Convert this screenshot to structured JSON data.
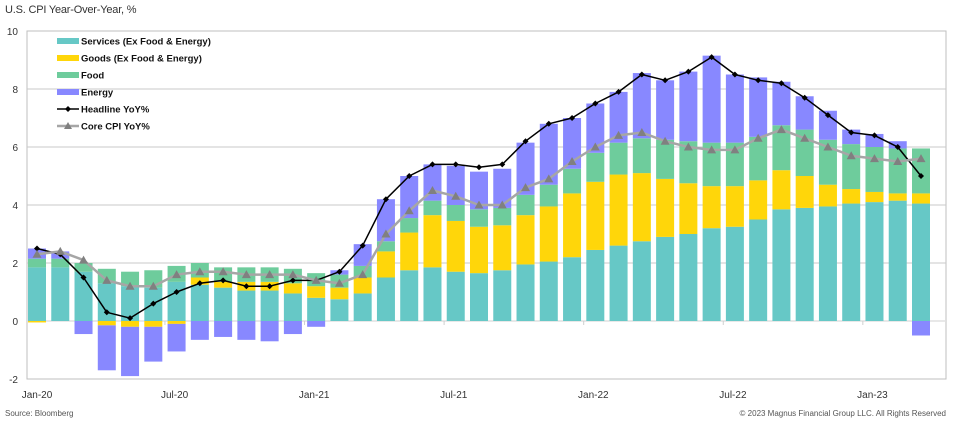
{
  "header": {
    "title": "U.S. CPI Year-Over-Year, %"
  },
  "footer": {
    "source": "Source: Bloomberg",
    "copyright": "© 2023 Magnus Financial Group LLC. All Rights Reserved"
  },
  "colors": {
    "services": "#66c8c6",
    "goods": "#ffd60a",
    "food": "#6ecc9c",
    "energy": "#8888ff",
    "headline": "#000000",
    "core": "#a6a6a6",
    "core_marker": "#808080",
    "grid": "#c8c8c8"
  },
  "chart_data": {
    "type": "bar",
    "stacked": true,
    "title": "U.S. CPI Year-Over-Year, %",
    "xlabel": "",
    "ylabel": "",
    "ylim": [
      -2,
      10
    ],
    "yticks": [
      "10",
      "8",
      "6",
      "4",
      "2",
      "0",
      "-2"
    ],
    "ytick_values": [
      10,
      8,
      6,
      4,
      2,
      0,
      -2
    ],
    "grid": true,
    "legend_position": "top-left",
    "categories": [
      "Jan-20",
      "Feb-20",
      "Mar-20",
      "Apr-20",
      "May-20",
      "Jun-20",
      "Jul-20",
      "Aug-20",
      "Sep-20",
      "Oct-20",
      "Nov-20",
      "Dec-20",
      "Jan-21",
      "Feb-21",
      "Mar-21",
      "Apr-21",
      "May-21",
      "Jun-21",
      "Jul-21",
      "Aug-21",
      "Sep-21",
      "Oct-21",
      "Nov-21",
      "Dec-21",
      "Jan-22",
      "Feb-22",
      "Mar-22",
      "Apr-22",
      "May-22",
      "Jun-22",
      "Jul-22",
      "Aug-22",
      "Sep-22",
      "Oct-22",
      "Nov-22",
      "Dec-22",
      "Jan-23",
      "Feb-23",
      "Mar-23"
    ],
    "xticks": [
      {
        "label": "Jan-20",
        "index": 0
      },
      {
        "label": "Jul-20",
        "index": 6
      },
      {
        "label": "Jan-21",
        "index": 12
      },
      {
        "label": "Jul-21",
        "index": 18
      },
      {
        "label": "Jan-22",
        "index": 24
      },
      {
        "label": "Jul-22",
        "index": 30
      },
      {
        "label": "Jan-23",
        "index": 36
      }
    ],
    "series": [
      {
        "name": "Services (Ex Food & Energy)",
        "kind": "bar",
        "color_key": "services",
        "values": [
          1.85,
          1.85,
          1.7,
          1.3,
          1.2,
          1.15,
          1.35,
          1.25,
          1.15,
          1.05,
          1.05,
          0.95,
          0.8,
          0.75,
          0.95,
          1.5,
          1.75,
          1.85,
          1.7,
          1.65,
          1.75,
          1.95,
          2.05,
          2.2,
          2.45,
          2.6,
          2.75,
          2.9,
          3.0,
          3.2,
          3.25,
          3.5,
          3.85,
          3.9,
          3.95,
          4.05,
          4.1,
          4.15,
          4.05
        ]
      },
      {
        "name": "Goods (Ex Food & Energy)",
        "kind": "bar",
        "color_key": "goods",
        "values": [
          -0.05,
          0.0,
          0.0,
          -0.15,
          -0.2,
          -0.2,
          -0.1,
          0.25,
          0.2,
          0.3,
          0.3,
          0.35,
          0.4,
          0.4,
          0.55,
          0.9,
          1.3,
          1.8,
          1.75,
          1.6,
          1.55,
          1.7,
          1.9,
          2.2,
          2.35,
          2.45,
          2.35,
          2.0,
          1.75,
          1.45,
          1.4,
          1.35,
          1.35,
          1.1,
          0.75,
          0.5,
          0.35,
          0.25,
          0.35
        ]
      },
      {
        "name": "Food",
        "kind": "bar",
        "color_key": "food",
        "values": [
          0.3,
          0.3,
          0.3,
          0.5,
          0.5,
          0.6,
          0.55,
          0.5,
          0.5,
          0.5,
          0.5,
          0.5,
          0.45,
          0.45,
          0.4,
          0.35,
          0.5,
          0.5,
          0.55,
          0.6,
          0.6,
          0.7,
          0.75,
          0.85,
          1.0,
          1.1,
          1.2,
          1.35,
          1.45,
          1.5,
          1.5,
          1.5,
          1.55,
          1.6,
          1.55,
          1.55,
          1.55,
          1.55,
          1.55
        ]
      },
      {
        "name": "Energy",
        "kind": "bar",
        "color_key": "energy",
        "values": [
          0.35,
          0.25,
          -0.45,
          -1.55,
          -1.7,
          -1.2,
          -0.95,
          -0.65,
          -0.55,
          -0.65,
          -0.7,
          -0.45,
          -0.2,
          0.15,
          0.75,
          1.45,
          1.45,
          1.25,
          1.35,
          1.3,
          1.35,
          1.8,
          2.1,
          1.75,
          1.7,
          1.75,
          2.25,
          2.05,
          2.4,
          3.0,
          2.35,
          2.05,
          1.5,
          1.15,
          1.0,
          0.5,
          0.45,
          0.25,
          -0.5
        ]
      },
      {
        "name": "Headline YoY%",
        "kind": "line",
        "color_key": "headline",
        "marker": "diamond",
        "values": [
          2.5,
          2.3,
          1.5,
          0.3,
          0.1,
          0.6,
          1.0,
          1.3,
          1.4,
          1.2,
          1.2,
          1.4,
          1.4,
          1.7,
          2.6,
          4.2,
          5.0,
          5.4,
          5.4,
          5.3,
          5.4,
          6.2,
          6.8,
          7.0,
          7.5,
          7.9,
          8.5,
          8.3,
          8.6,
          9.1,
          8.5,
          8.3,
          8.2,
          7.7,
          7.1,
          6.5,
          6.4,
          6.0,
          5.0
        ]
      },
      {
        "name": "Core CPI YoY%",
        "kind": "line",
        "color_key": "core",
        "marker": "triangle",
        "values": [
          2.3,
          2.4,
          2.1,
          1.4,
          1.2,
          1.2,
          1.6,
          1.7,
          1.7,
          1.6,
          1.6,
          1.6,
          1.4,
          1.3,
          1.6,
          3.0,
          3.8,
          4.5,
          4.3,
          4.0,
          4.0,
          4.6,
          4.9,
          5.5,
          6.0,
          6.4,
          6.5,
          6.2,
          6.0,
          5.9,
          5.9,
          6.3,
          6.6,
          6.3,
          6.0,
          5.7,
          5.6,
          5.5,
          5.6
        ]
      }
    ]
  }
}
